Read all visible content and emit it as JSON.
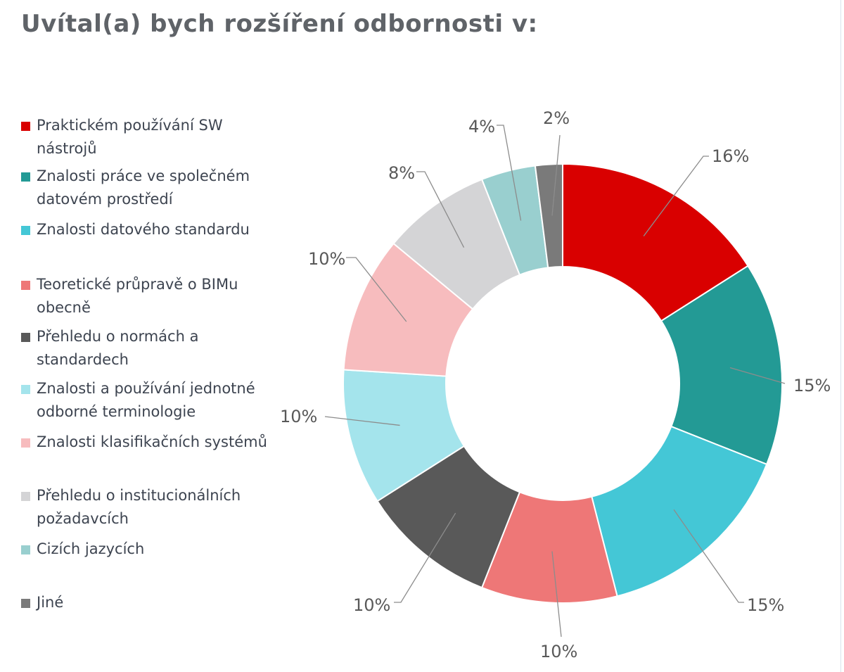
{
  "title": "Uvítal(a) bych rozšíření odbornosti v:",
  "chart_data": {
    "type": "pie",
    "donut": true,
    "title": "Uvítal(a) bych rozšíření odbornosti v:",
    "legend_position": "left",
    "slices": [
      {
        "label": "Praktickém používání SW nástrojů",
        "value": 16,
        "display": "16%",
        "color": "#d90000"
      },
      {
        "label": "Znalosti práce ve společném datovém prostředí",
        "value": 15,
        "display": "15%",
        "color": "#239a95"
      },
      {
        "label": "Znalosti datového standardu",
        "value": 15,
        "display": "15%",
        "color": "#44c7d6"
      },
      {
        "label": "Teoretické průpravě o BIMu obecně",
        "value": 10,
        "display": "10%",
        "color": "#ee7777"
      },
      {
        "label": "Přehledu o normách a standardech",
        "value": 10,
        "display": "10%",
        "color": "#595959"
      },
      {
        "label": "Znalosti a používání jednotné odborné terminologie",
        "value": 10,
        "display": "10%",
        "color": "#a4e4ec"
      },
      {
        "label": "Znalosti klasifikačních systémů",
        "value": 10,
        "display": "10%",
        "color": "#f7bcbe"
      },
      {
        "label": "Přehledu o institucionálních požadavcích",
        "value": 8,
        "display": "8%",
        "color": "#d4d4d6"
      },
      {
        "label": "Cizích jazycích",
        "value": 4,
        "display": "4%",
        "color": "#99cfcf"
      },
      {
        "label": "Jiné",
        "value": 2,
        "display": "2%",
        "color": "#7a7a7a"
      }
    ]
  }
}
